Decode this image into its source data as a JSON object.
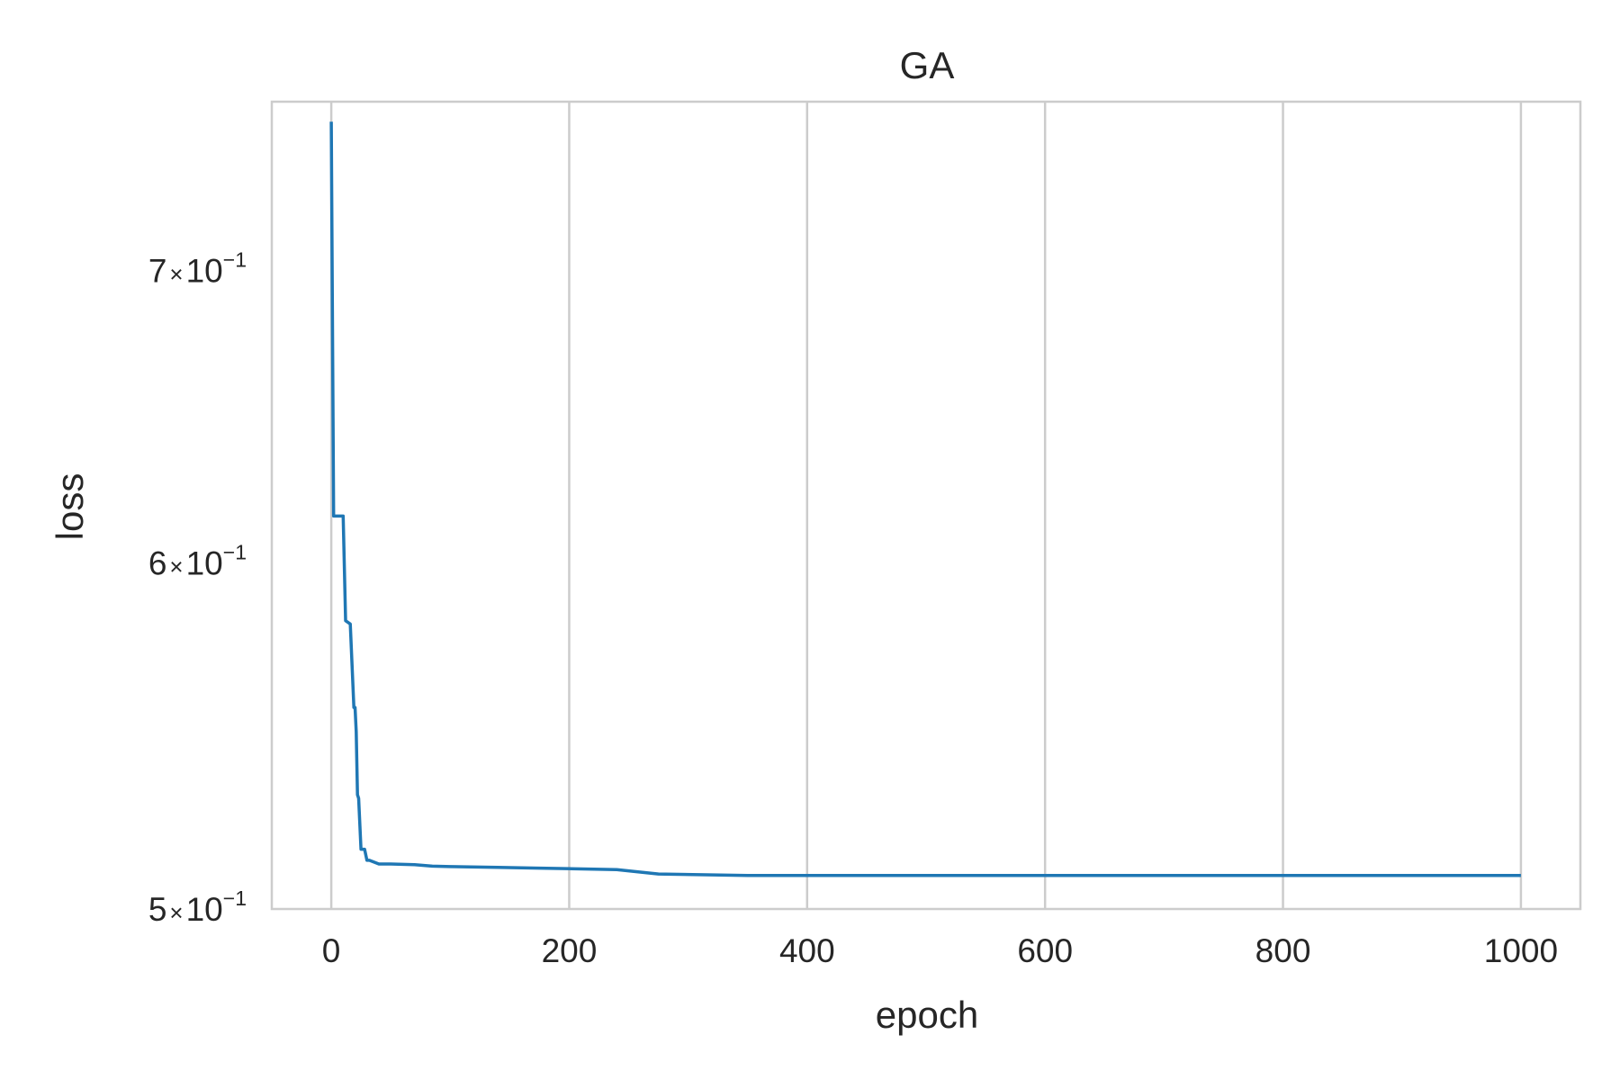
{
  "chart_data": {
    "type": "line",
    "title": "GA",
    "xlabel": "epoch",
    "ylabel": "loss",
    "xlim": [
      -50,
      1050
    ],
    "ylim": [
      0.5,
      0.765
    ],
    "yscale": "log",
    "grid": {
      "x": true,
      "y": false
    },
    "x_ticks": [
      {
        "value": 0,
        "label": "0"
      },
      {
        "value": 200,
        "label": "200"
      },
      {
        "value": 400,
        "label": "400"
      },
      {
        "value": 600,
        "label": "600"
      },
      {
        "value": 800,
        "label": "800"
      },
      {
        "value": 1000,
        "label": "1000"
      }
    ],
    "y_ticks": [
      {
        "value": 0.5,
        "mantissa": "5",
        "times": "×",
        "base": "10",
        "exponent": "−1"
      },
      {
        "value": 0.6,
        "mantissa": "6",
        "times": "×",
        "base": "10",
        "exponent": "−1"
      },
      {
        "value": 0.7,
        "mantissa": "7",
        "times": "×",
        "base": "10",
        "exponent": "−1"
      }
    ],
    "series": [
      {
        "color": "#1f77b4",
        "x": [
          0,
          2,
          10,
          12,
          16,
          19,
          20,
          21,
          22,
          23,
          25,
          28,
          30,
          32,
          40,
          50,
          70,
          85,
          100,
          140,
          170,
          240,
          275,
          350,
          1000
        ],
        "y": [
          0.757,
          0.615,
          0.615,
          0.582,
          0.581,
          0.556,
          0.556,
          0.549,
          0.531,
          0.53,
          0.516,
          0.516,
          0.513,
          0.513,
          0.512,
          0.512,
          0.5118,
          0.5114,
          0.5113,
          0.5111,
          0.5109,
          0.5105,
          0.5093,
          0.5089,
          0.5089
        ]
      }
    ]
  }
}
